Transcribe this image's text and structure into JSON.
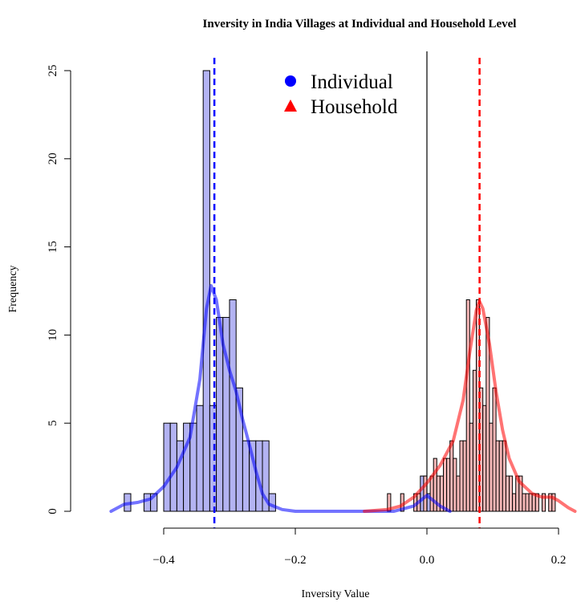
{
  "chart_data": {
    "type": "histogram",
    "title": "Inversity in India Villages at Individual and Household Level",
    "xlabel": "Inversity Value",
    "ylabel": "Frequency",
    "xlim": [
      -0.48,
      0.23
    ],
    "ylim": [
      0,
      25
    ],
    "x_ticks": [
      -0.4,
      -0.2,
      0.0,
      0.2
    ],
    "x_tick_labels": [
      "−0.4",
      "−0.2",
      "0.0",
      "0.2"
    ],
    "y_ticks": [
      0,
      5,
      10,
      15,
      20,
      25
    ],
    "y_tick_labels": [
      "0",
      "5",
      "10",
      "15",
      "20",
      "25"
    ],
    "grid": false,
    "legend_position": "top-center",
    "reference_line_x": 0.0,
    "series": [
      {
        "name": "Individual",
        "marker": "circle",
        "color": "#0000ff",
        "fill": "#b3b3f2",
        "mean": -0.323,
        "bin_width": 0.01,
        "bins": [
          {
            "start": -0.46,
            "count": 1
          },
          {
            "start": -0.45,
            "count": 0
          },
          {
            "start": -0.44,
            "count": 0
          },
          {
            "start": -0.43,
            "count": 1
          },
          {
            "start": -0.42,
            "count": 1
          },
          {
            "start": -0.41,
            "count": 0
          },
          {
            "start": -0.4,
            "count": 5
          },
          {
            "start": -0.39,
            "count": 5
          },
          {
            "start": -0.38,
            "count": 4
          },
          {
            "start": -0.37,
            "count": 5
          },
          {
            "start": -0.36,
            "count": 5
          },
          {
            "start": -0.35,
            "count": 6
          },
          {
            "start": -0.34,
            "count": 25
          },
          {
            "start": -0.33,
            "count": 6
          },
          {
            "start": -0.32,
            "count": 11
          },
          {
            "start": -0.31,
            "count": 11
          },
          {
            "start": -0.3,
            "count": 12
          },
          {
            "start": -0.29,
            "count": 7
          },
          {
            "start": -0.28,
            "count": 4
          },
          {
            "start": -0.27,
            "count": 4
          },
          {
            "start": -0.26,
            "count": 4
          },
          {
            "start": -0.25,
            "count": 4
          },
          {
            "start": -0.24,
            "count": 1
          },
          {
            "start": -0.23,
            "count": 0
          },
          {
            "start": -0.22,
            "count": 0
          },
          {
            "start": -0.01,
            "count": 2
          },
          {
            "start": 0.0,
            "count": 1
          }
        ],
        "density_curve": [
          [
            -0.48,
            0.0
          ],
          [
            -0.46,
            0.4
          ],
          [
            -0.44,
            0.5
          ],
          [
            -0.42,
            0.7
          ],
          [
            -0.4,
            1.4
          ],
          [
            -0.38,
            2.5
          ],
          [
            -0.36,
            4.2
          ],
          [
            -0.345,
            7.5
          ],
          [
            -0.335,
            11.5
          ],
          [
            -0.328,
            12.8
          ],
          [
            -0.32,
            12.0
          ],
          [
            -0.31,
            9.5
          ],
          [
            -0.3,
            8.0
          ],
          [
            -0.29,
            6.8
          ],
          [
            -0.28,
            5.2
          ],
          [
            -0.27,
            3.8
          ],
          [
            -0.26,
            2.3
          ],
          [
            -0.25,
            1.0
          ],
          [
            -0.24,
            0.4
          ],
          [
            -0.22,
            0.1
          ],
          [
            -0.2,
            0.0
          ],
          [
            -0.05,
            0.0
          ],
          [
            -0.02,
            0.3
          ],
          [
            0.0,
            0.9
          ],
          [
            0.02,
            0.3
          ],
          [
            0.035,
            0.0
          ]
        ]
      },
      {
        "name": "Household",
        "marker": "triangle",
        "color": "#ff0000",
        "fill": "#f7b8b8",
        "mean": 0.08,
        "bin_width": 0.005,
        "bins": [
          {
            "start": -0.06,
            "count": 1
          },
          {
            "start": -0.04,
            "count": 1
          },
          {
            "start": -0.02,
            "count": 1
          },
          {
            "start": -0.015,
            "count": 1
          },
          {
            "start": -0.005,
            "count": 2
          },
          {
            "start": 0.005,
            "count": 2
          },
          {
            "start": 0.01,
            "count": 3
          },
          {
            "start": 0.015,
            "count": 2
          },
          {
            "start": 0.02,
            "count": 2
          },
          {
            "start": 0.025,
            "count": 3
          },
          {
            "start": 0.03,
            "count": 3
          },
          {
            "start": 0.035,
            "count": 4
          },
          {
            "start": 0.04,
            "count": 3
          },
          {
            "start": 0.045,
            "count": 2
          },
          {
            "start": 0.05,
            "count": 4
          },
          {
            "start": 0.055,
            "count": 4
          },
          {
            "start": 0.06,
            "count": 12
          },
          {
            "start": 0.065,
            "count": 5
          },
          {
            "start": 0.07,
            "count": 8
          },
          {
            "start": 0.075,
            "count": 12
          },
          {
            "start": 0.08,
            "count": 7
          },
          {
            "start": 0.085,
            "count": 6
          },
          {
            "start": 0.09,
            "count": 11
          },
          {
            "start": 0.095,
            "count": 5
          },
          {
            "start": 0.1,
            "count": 7
          },
          {
            "start": 0.105,
            "count": 4
          },
          {
            "start": 0.11,
            "count": 4
          },
          {
            "start": 0.115,
            "count": 4
          },
          {
            "start": 0.12,
            "count": 2
          },
          {
            "start": 0.125,
            "count": 2
          },
          {
            "start": 0.13,
            "count": 1
          },
          {
            "start": 0.135,
            "count": 2
          },
          {
            "start": 0.14,
            "count": 2
          },
          {
            "start": 0.145,
            "count": 1
          },
          {
            "start": 0.15,
            "count": 1
          },
          {
            "start": 0.155,
            "count": 1
          },
          {
            "start": 0.16,
            "count": 1
          },
          {
            "start": 0.165,
            "count": 1
          },
          {
            "start": 0.175,
            "count": 1
          },
          {
            "start": 0.185,
            "count": 1
          },
          {
            "start": 0.19,
            "count": 1
          }
        ],
        "density_curve": [
          [
            -0.095,
            0.0
          ],
          [
            -0.06,
            0.1
          ],
          [
            -0.04,
            0.3
          ],
          [
            -0.02,
            0.8
          ],
          [
            0.0,
            1.6
          ],
          [
            0.02,
            2.6
          ],
          [
            0.04,
            4.0
          ],
          [
            0.055,
            6.3
          ],
          [
            0.065,
            9.0
          ],
          [
            0.075,
            11.4
          ],
          [
            0.08,
            11.9
          ],
          [
            0.085,
            11.5
          ],
          [
            0.095,
            9.5
          ],
          [
            0.105,
            6.8
          ],
          [
            0.115,
            4.6
          ],
          [
            0.125,
            3.0
          ],
          [
            0.14,
            1.7
          ],
          [
            0.16,
            1.0
          ],
          [
            0.175,
            0.8
          ],
          [
            0.19,
            0.8
          ],
          [
            0.2,
            0.6
          ],
          [
            0.215,
            0.2
          ],
          [
            0.225,
            0.0
          ]
        ]
      }
    ]
  }
}
